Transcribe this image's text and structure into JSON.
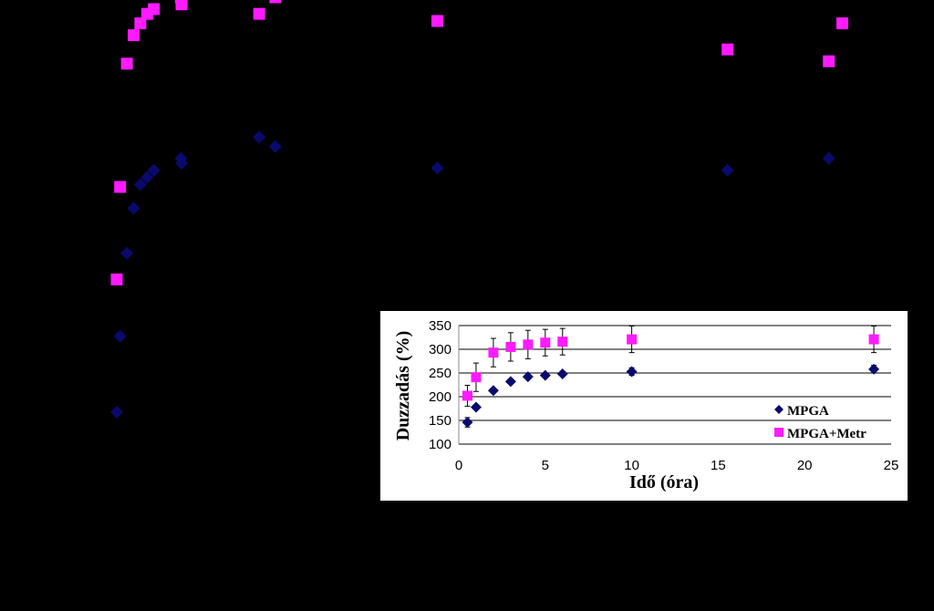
{
  "colors": {
    "background": "#000000",
    "inset_background": "#ffffff",
    "series1": "#0a0a6e",
    "series2": "#ff1aff",
    "gridline": "#000000",
    "error_bar": "#000000"
  },
  "chart_data": [
    {
      "type": "scatter",
      "title": "",
      "xlabel": "",
      "ylabel": "",
      "grid": false,
      "legend": "none",
      "axes_visible": false,
      "marker_shapes": [
        "diamond",
        "square"
      ],
      "series": [
        {
          "values": [
            {
              "x": 0.5,
              "y": 146
            },
            {
              "x": 1,
              "y": 178
            },
            {
              "x": 2,
              "y": 213
            },
            {
              "x": 3,
              "y": 232
            },
            {
              "x": 4,
              "y": 242
            },
            {
              "x": 5,
              "y": 245
            },
            {
              "x": 6,
              "y": 248
            },
            {
              "x": 10,
              "y": 253
            },
            {
              "x": 24,
              "y": 258
            },
            {
              "x": 10.1,
              "y": 251
            },
            {
              "x": 48,
              "y": 249
            },
            {
              "x": 91,
              "y": 248
            },
            {
              "x": 108,
              "y": 330
            },
            {
              "x": 106,
              "y": 253
            },
            {
              "x": 21.6,
              "y": 262
            }
          ]
        },
        {
          "values": [
            {
              "x": 0.5,
              "y": 202
            },
            {
              "x": 1,
              "y": 241
            },
            {
              "x": 2,
              "y": 293
            },
            {
              "x": 3,
              "y": 305
            },
            {
              "x": 4,
              "y": 310
            },
            {
              "x": 5,
              "y": 314
            },
            {
              "x": 6,
              "y": 316
            },
            {
              "x": 10,
              "y": 321
            },
            {
              "x": 24,
              "y": 321
            },
            {
              "x": 10.1,
              "y": 318
            },
            {
              "x": 48,
              "y": 311
            },
            {
              "x": 91,
              "y": 299
            },
            {
              "x": 108,
              "y": 310
            },
            {
              "x": 106,
              "y": 294
            },
            {
              "x": 21.6,
              "y": 314
            }
          ]
        }
      ]
    },
    {
      "type": "scatter",
      "title": "",
      "xlabel": "Idő (óra)",
      "ylabel": "Duzzadás (%)",
      "xlim": [
        0,
        25
      ],
      "ylim": [
        100,
        350
      ],
      "x_ticks": [
        "0",
        "5",
        "10",
        "15",
        "20",
        "25"
      ],
      "y_ticks": [
        "100",
        "150",
        "200",
        "250",
        "300",
        "350"
      ],
      "grid": true,
      "legend": "bottom-right",
      "series": [
        {
          "name": "MPGA",
          "marker": "diamond",
          "points": [
            {
              "x": 0.5,
              "y": 146,
              "err": 10
            },
            {
              "x": 1,
              "y": 178,
              "err": 0
            },
            {
              "x": 2,
              "y": 213,
              "err": 0
            },
            {
              "x": 3,
              "y": 232,
              "err": 0
            },
            {
              "x": 4,
              "y": 242,
              "err": 0
            },
            {
              "x": 5,
              "y": 245,
              "err": 0
            },
            {
              "x": 6,
              "y": 248,
              "err": 0
            },
            {
              "x": 10,
              "y": 253,
              "err": 8
            },
            {
              "x": 24,
              "y": 258,
              "err": 8
            }
          ]
        },
        {
          "name": "MPGA+Metr",
          "marker": "square",
          "points": [
            {
              "x": 0.5,
              "y": 202,
              "err": 22
            },
            {
              "x": 1,
              "y": 241,
              "err": 30
            },
            {
              "x": 2,
              "y": 293,
              "err": 30
            },
            {
              "x": 3,
              "y": 305,
              "err": 30
            },
            {
              "x": 4,
              "y": 310,
              "err": 30
            },
            {
              "x": 5,
              "y": 314,
              "err": 28
            },
            {
              "x": 6,
              "y": 316,
              "err": 28
            },
            {
              "x": 10,
              "y": 321,
              "err": 28
            },
            {
              "x": 24,
              "y": 321,
              "err": 28
            }
          ]
        }
      ]
    }
  ]
}
